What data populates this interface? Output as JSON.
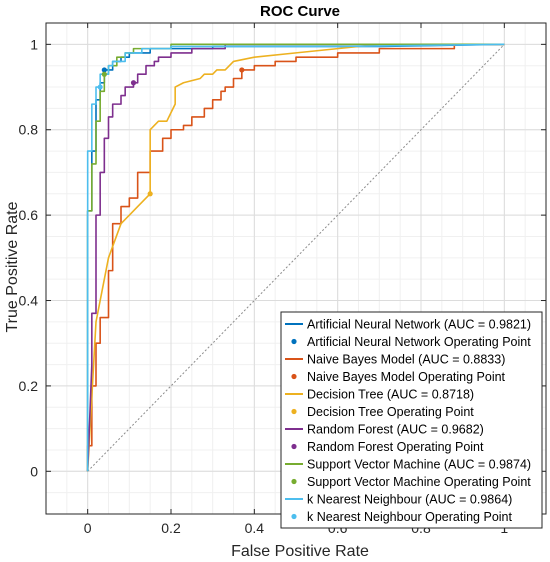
{
  "chart_data": {
    "type": "line",
    "title": "ROC Curve",
    "xlabel": "False Positive Rate",
    "ylabel": "True Positive Rate",
    "xlim": [
      -0.1,
      1.1
    ],
    "ylim": [
      -0.1,
      1.05
    ],
    "xticks": [
      0,
      0.2,
      0.4,
      0.6,
      0.8,
      1
    ],
    "yticks": [
      0,
      0.2,
      0.4,
      0.6,
      0.8,
      1
    ],
    "xtick_labels": [
      "0",
      "0.2",
      "0.4",
      "0.6",
      "0.8",
      "1"
    ],
    "ytick_labels": [
      "0",
      "0.2",
      "0.4",
      "0.6",
      "0.8",
      "1"
    ],
    "grid": true,
    "legend_position": "bottom-right",
    "chance_line": true,
    "series": [
      {
        "name": "Artificial Neural Network (AUC = 0.9821)",
        "color": "#0072BD",
        "points": [
          [
            0,
            0
          ],
          [
            0,
            0.61
          ],
          [
            0.01,
            0.61
          ],
          [
            0.01,
            0.75
          ],
          [
            0.02,
            0.75
          ],
          [
            0.02,
            0.87
          ],
          [
            0.03,
            0.87
          ],
          [
            0.03,
            0.91
          ],
          [
            0.04,
            0.91
          ],
          [
            0.04,
            0.94
          ],
          [
            0.06,
            0.94
          ],
          [
            0.06,
            0.96
          ],
          [
            0.08,
            0.96
          ],
          [
            0.08,
            0.97
          ],
          [
            0.1,
            0.97
          ],
          [
            0.1,
            0.98
          ],
          [
            0.15,
            0.98
          ],
          [
            0.15,
            0.99
          ],
          [
            0.3,
            0.99
          ],
          [
            0.3,
            0.995
          ],
          [
            0.7,
            0.995
          ],
          [
            1,
            1
          ]
        ],
        "operating_point": [
          0.04,
          0.94
        ],
        "operating_label": "Artificial Neural Network Operating Point"
      },
      {
        "name": "Naive Bayes Model (AUC = 0.8833)",
        "color": "#D95319",
        "points": [
          [
            0,
            0
          ],
          [
            0,
            0.06
          ],
          [
            0.01,
            0.06
          ],
          [
            0.01,
            0.2
          ],
          [
            0.02,
            0.2
          ],
          [
            0.02,
            0.3
          ],
          [
            0.03,
            0.3
          ],
          [
            0.03,
            0.36
          ],
          [
            0.05,
            0.36
          ],
          [
            0.05,
            0.47
          ],
          [
            0.06,
            0.47
          ],
          [
            0.06,
            0.58
          ],
          [
            0.08,
            0.58
          ],
          [
            0.08,
            0.62
          ],
          [
            0.1,
            0.62
          ],
          [
            0.1,
            0.64
          ],
          [
            0.12,
            0.64
          ],
          [
            0.12,
            0.7
          ],
          [
            0.15,
            0.7
          ],
          [
            0.15,
            0.75
          ],
          [
            0.18,
            0.75
          ],
          [
            0.18,
            0.78
          ],
          [
            0.2,
            0.78
          ],
          [
            0.2,
            0.8
          ],
          [
            0.23,
            0.8
          ],
          [
            0.23,
            0.81
          ],
          [
            0.25,
            0.81
          ],
          [
            0.25,
            0.83
          ],
          [
            0.28,
            0.83
          ],
          [
            0.28,
            0.85
          ],
          [
            0.3,
            0.85
          ],
          [
            0.3,
            0.87
          ],
          [
            0.32,
            0.87
          ],
          [
            0.32,
            0.89
          ],
          [
            0.33,
            0.89
          ],
          [
            0.33,
            0.9
          ],
          [
            0.35,
            0.9
          ],
          [
            0.35,
            0.92
          ],
          [
            0.37,
            0.92
          ],
          [
            0.37,
            0.94
          ],
          [
            0.4,
            0.94
          ],
          [
            0.4,
            0.95
          ],
          [
            0.45,
            0.95
          ],
          [
            0.45,
            0.96
          ],
          [
            0.5,
            0.96
          ],
          [
            0.5,
            0.97
          ],
          [
            0.6,
            0.97
          ],
          [
            0.6,
            0.98
          ],
          [
            0.7,
            0.98
          ],
          [
            0.7,
            0.99
          ],
          [
            0.88,
            0.99
          ],
          [
            0.88,
            1
          ],
          [
            1,
            1
          ]
        ],
        "operating_point": [
          0.37,
          0.94
        ],
        "operating_label": "Naive Bayes Model Operating Point"
      },
      {
        "name": "Decision Tree (AUC = 0.8718)",
        "color": "#EDB120",
        "points": [
          [
            0,
            0
          ],
          [
            0.02,
            0.35
          ],
          [
            0.05,
            0.5
          ],
          [
            0.08,
            0.58
          ],
          [
            0.1,
            0.6
          ],
          [
            0.12,
            0.62
          ],
          [
            0.14,
            0.64
          ],
          [
            0.15,
            0.65
          ],
          [
            0.15,
            0.8
          ],
          [
            0.16,
            0.81
          ],
          [
            0.17,
            0.82
          ],
          [
            0.19,
            0.82
          ],
          [
            0.2,
            0.84
          ],
          [
            0.21,
            0.86
          ],
          [
            0.21,
            0.9
          ],
          [
            0.23,
            0.91
          ],
          [
            0.27,
            0.92
          ],
          [
            0.28,
            0.93
          ],
          [
            0.3,
            0.93
          ],
          [
            0.31,
            0.94
          ],
          [
            0.33,
            0.94
          ],
          [
            0.35,
            0.96
          ],
          [
            0.4,
            0.97
          ],
          [
            0.5,
            0.98
          ],
          [
            0.6,
            0.99
          ],
          [
            0.7,
            1
          ],
          [
            1,
            1
          ]
        ],
        "operating_point": [
          0.15,
          0.65
        ],
        "operating_label": "Decision Tree Operating Point"
      },
      {
        "name": "Random Forest (AUC = 0.9682)",
        "color": "#7E2F8E",
        "points": [
          [
            0,
            0
          ],
          [
            0.01,
            0.25
          ],
          [
            0.01,
            0.37
          ],
          [
            0.02,
            0.37
          ],
          [
            0.02,
            0.6
          ],
          [
            0.03,
            0.6
          ],
          [
            0.03,
            0.7
          ],
          [
            0.04,
            0.7
          ],
          [
            0.04,
            0.78
          ],
          [
            0.05,
            0.78
          ],
          [
            0.05,
            0.83
          ],
          [
            0.06,
            0.83
          ],
          [
            0.06,
            0.86
          ],
          [
            0.08,
            0.86
          ],
          [
            0.08,
            0.88
          ],
          [
            0.09,
            0.88
          ],
          [
            0.09,
            0.9
          ],
          [
            0.11,
            0.9
          ],
          [
            0.11,
            0.91
          ],
          [
            0.12,
            0.91
          ],
          [
            0.12,
            0.93
          ],
          [
            0.14,
            0.93
          ],
          [
            0.14,
            0.95
          ],
          [
            0.16,
            0.95
          ],
          [
            0.16,
            0.96
          ],
          [
            0.17,
            0.96
          ],
          [
            0.17,
            0.97
          ],
          [
            0.2,
            0.97
          ],
          [
            0.2,
            0.98
          ],
          [
            0.25,
            0.98
          ],
          [
            0.25,
            0.99
          ],
          [
            0.33,
            0.99
          ],
          [
            0.33,
            1
          ],
          [
            1,
            1
          ]
        ],
        "operating_point": [
          0.11,
          0.91
        ],
        "operating_label": "Random Forest Operating Point"
      },
      {
        "name": "Support Vector Machine (AUC = 0.9874)",
        "color": "#77AC30",
        "points": [
          [
            0,
            0
          ],
          [
            0,
            0.61
          ],
          [
            0.01,
            0.61
          ],
          [
            0.01,
            0.72
          ],
          [
            0.02,
            0.72
          ],
          [
            0.02,
            0.82
          ],
          [
            0.03,
            0.82
          ],
          [
            0.03,
            0.89
          ],
          [
            0.04,
            0.89
          ],
          [
            0.04,
            0.93
          ],
          [
            0.05,
            0.93
          ],
          [
            0.05,
            0.95
          ],
          [
            0.07,
            0.95
          ],
          [
            0.07,
            0.97
          ],
          [
            0.09,
            0.97
          ],
          [
            0.09,
            0.98
          ],
          [
            0.11,
            0.98
          ],
          [
            0.11,
            0.99
          ],
          [
            0.2,
            0.99
          ],
          [
            0.2,
            1
          ],
          [
            1,
            1
          ]
        ],
        "operating_point": [
          0.04,
          0.93
        ],
        "operating_label": "Support Vector Machine Operating Point"
      },
      {
        "name": "k Nearest Neighbour (AUC = 0.9864)",
        "color": "#4DBEEE",
        "points": [
          [
            0,
            0
          ],
          [
            0,
            0.75
          ],
          [
            0.01,
            0.75
          ],
          [
            0.01,
            0.86
          ],
          [
            0.02,
            0.86
          ],
          [
            0.02,
            0.9
          ],
          [
            0.03,
            0.9
          ],
          [
            0.03,
            0.93
          ],
          [
            0.05,
            0.93
          ],
          [
            0.05,
            0.95
          ],
          [
            0.06,
            0.95
          ],
          [
            0.06,
            0.96
          ],
          [
            0.09,
            0.96
          ],
          [
            0.09,
            0.98
          ],
          [
            0.13,
            0.98
          ],
          [
            0.13,
            0.99
          ],
          [
            0.2,
            0.99
          ],
          [
            0.2,
            0.995
          ],
          [
            0.6,
            0.995
          ],
          [
            1,
            1
          ]
        ],
        "operating_point": [
          0.03,
          0.9
        ],
        "operating_label": "k Nearest Neighbour Operating Point"
      }
    ]
  }
}
